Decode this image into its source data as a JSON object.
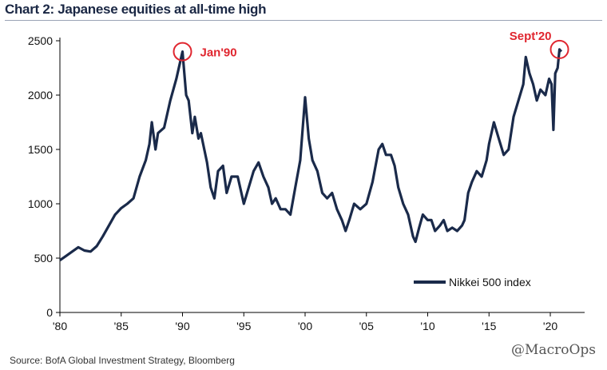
{
  "title": "Chart 2: Japanese equities at all-time high",
  "source": "Source:  BofA Global Investment Strategy, Bloomberg",
  "watermark": "@MacroOps",
  "chart_data": {
    "type": "line",
    "xlim": [
      1980,
      2022.8
    ],
    "ylim": [
      0,
      2500
    ],
    "yticks": [
      0,
      500,
      1000,
      1500,
      2000,
      2500
    ],
    "xticks": [
      {
        "value": 1980,
        "label": "'80"
      },
      {
        "value": 1985,
        "label": "'85"
      },
      {
        "value": 1990,
        "label": "'90"
      },
      {
        "value": 1995,
        "label": "'95"
      },
      {
        "value": 2000,
        "label": "'00"
      },
      {
        "value": 2005,
        "label": "'05"
      },
      {
        "value": 2010,
        "label": "'10"
      },
      {
        "value": 2015,
        "label": "'15"
      },
      {
        "value": 2020,
        "label": "'20"
      }
    ],
    "legend_position": "bottom-right",
    "line_color": "#1a2a4a",
    "annotation_color": "#e0262f",
    "annotations": [
      {
        "label": "Jan'90",
        "x": 1990.0,
        "y": 2400
      },
      {
        "label": "Sept'20",
        "x": 2020.75,
        "y": 2420
      }
    ],
    "series": [
      {
        "name": "Nikkei 500 index",
        "x": [
          1980.0,
          1980.5,
          1981.0,
          1981.5,
          1982.0,
          1982.5,
          1983.0,
          1983.5,
          1984.0,
          1984.5,
          1985.0,
          1985.5,
          1986.0,
          1986.5,
          1987.0,
          1987.3,
          1987.5,
          1987.8,
          1988.0,
          1988.5,
          1989.0,
          1989.5,
          1990.0,
          1990.3,
          1990.5,
          1990.8,
          1991.0,
          1991.3,
          1991.5,
          1992.0,
          1992.3,
          1992.6,
          1992.9,
          1993.3,
          1993.6,
          1994.0,
          1994.5,
          1995.0,
          1995.4,
          1995.8,
          1996.2,
          1996.6,
          1997.0,
          1997.3,
          1997.6,
          1998.0,
          1998.4,
          1998.8,
          1999.2,
          1999.6,
          2000.0,
          2000.3,
          2000.6,
          2001.0,
          2001.4,
          2001.8,
          2002.2,
          2002.6,
          2003.0,
          2003.3,
          2003.6,
          2004.0,
          2004.5,
          2005.0,
          2005.5,
          2006.0,
          2006.3,
          2006.6,
          2007.0,
          2007.3,
          2007.6,
          2008.0,
          2008.4,
          2008.8,
          2009.0,
          2009.3,
          2009.6,
          2010.0,
          2010.3,
          2010.6,
          2011.0,
          2011.3,
          2011.6,
          2012.0,
          2012.4,
          2012.8,
          2013.0,
          2013.3,
          2013.6,
          2014.0,
          2014.4,
          2014.8,
          2015.0,
          2015.4,
          2015.8,
          2016.2,
          2016.6,
          2017.0,
          2017.4,
          2017.8,
          2018.0,
          2018.3,
          2018.6,
          2018.9,
          2019.2,
          2019.6,
          2019.9,
          2020.1,
          2020.25,
          2020.4,
          2020.6,
          2020.75,
          2020.9
        ],
        "y": [
          480,
          520,
          560,
          600,
          570,
          560,
          610,
          700,
          800,
          900,
          960,
          1000,
          1050,
          1250,
          1400,
          1550,
          1750,
          1500,
          1650,
          1700,
          1950,
          2150,
          2400,
          2000,
          1950,
          1650,
          1800,
          1600,
          1650,
          1380,
          1150,
          1050,
          1300,
          1350,
          1100,
          1250,
          1250,
          1000,
          1150,
          1300,
          1380,
          1250,
          1150,
          1000,
          1050,
          950,
          950,
          900,
          1150,
          1400,
          1980,
          1600,
          1400,
          1300,
          1100,
          1050,
          1100,
          950,
          850,
          750,
          850,
          1000,
          950,
          1000,
          1200,
          1500,
          1550,
          1450,
          1450,
          1350,
          1150,
          1000,
          900,
          700,
          650,
          780,
          900,
          850,
          850,
          750,
          800,
          850,
          750,
          780,
          750,
          800,
          850,
          1100,
          1200,
          1300,
          1250,
          1400,
          1550,
          1750,
          1600,
          1450,
          1500,
          1800,
          1950,
          2100,
          2350,
          2200,
          2100,
          1950,
          2050,
          2000,
          2150,
          2100,
          1680,
          2200,
          2250,
          2420,
          2400
        ]
      }
    ]
  }
}
